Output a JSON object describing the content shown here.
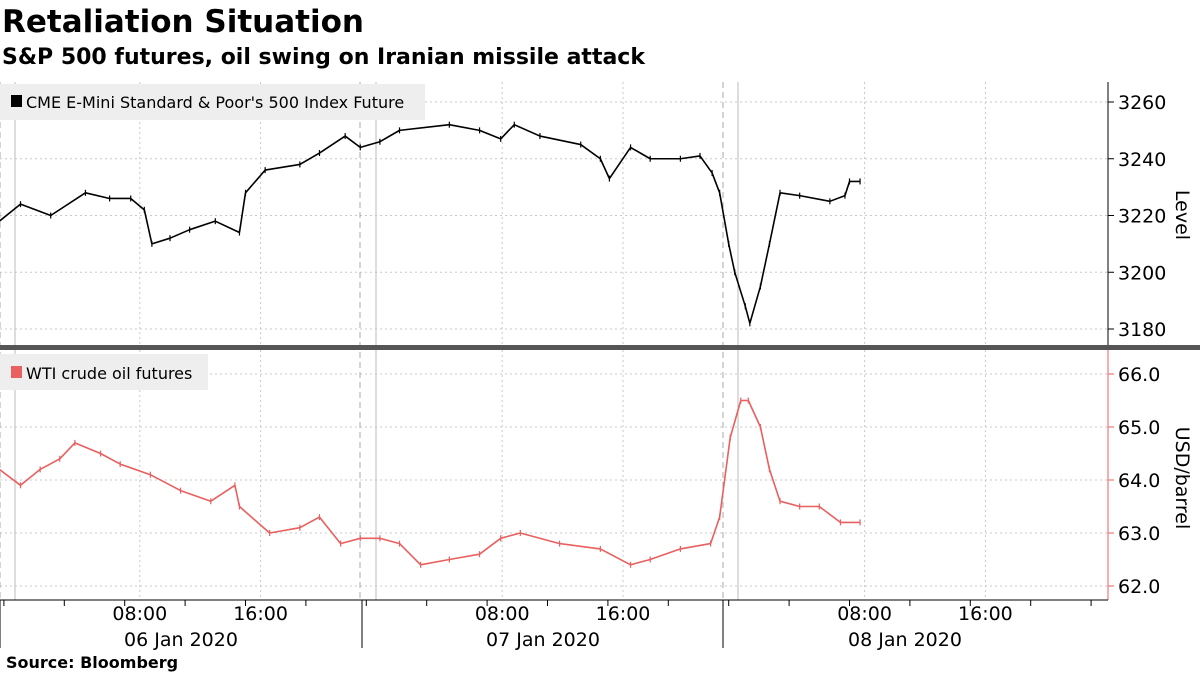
{
  "title": "Retaliation Situation",
  "subtitle": "S&P 500 futures, oil swing on Iranian missile attack",
  "source": "Source: Bloomberg",
  "colors": {
    "spx": "#000000",
    "oil": "#e8605f",
    "grid": "#c8c8c8",
    "divider": "#555555",
    "legend_bg": "#eeeeee"
  },
  "chart_data": [
    {
      "type": "line",
      "name": "CME E-Mini Standard & Poor's 500 Index Future",
      "ylabel": "Level",
      "ylim": [
        3175,
        3270
      ],
      "yticks": [
        "3260",
        "3240",
        "3220",
        "3200",
        "3180"
      ],
      "ytick_values": [
        3260,
        3240,
        3220,
        3200,
        3180
      ],
      "x_unit": "hours since 06 Jan 2020 00:00",
      "x": [
        -1.3,
        0.1,
        2.1,
        4.4,
        6.0,
        7.4,
        8.3,
        8.8,
        10.0,
        11.3,
        13.0,
        14.6,
        15.0,
        16.3,
        18.6,
        19.9,
        21.6,
        22.6,
        23.9,
        25.2,
        28.5,
        30.5,
        31.9,
        32.8,
        34.5,
        37.2,
        38.5,
        39.1,
        40.5,
        41.8,
        43.8,
        45.1,
        45.9,
        46.4,
        47.0,
        47.4,
        48.1,
        48.4,
        49.1,
        49.7,
        50.4,
        51.7,
        53.7,
        54.7,
        55.0,
        55.7
      ],
      "values": [
        3218,
        3224,
        3220,
        3228,
        3226,
        3226,
        3222,
        3210,
        3212,
        3215,
        3218,
        3214,
        3228,
        3236,
        3238,
        3242,
        3248,
        3244,
        3246,
        3250,
        3252,
        3250,
        3247,
        3252,
        3248,
        3245,
        3240,
        3233,
        3244,
        3240,
        3240,
        3241,
        3235,
        3228,
        3210,
        3200,
        3188,
        3182,
        3195,
        3210,
        3228,
        3227,
        3225,
        3227,
        3232,
        3232
      ]
    },
    {
      "type": "line",
      "name": "WTI crude oil futures",
      "ylabel": "USD/barrel",
      "ylim": [
        61.8,
        66.5
      ],
      "yticks": [
        "66.0",
        "65.0",
        "64.0",
        "63.0",
        "62.0"
      ],
      "ytick_values": [
        66,
        65,
        64,
        63,
        62
      ],
      "x_unit": "hours since 06 Jan 2020 00:00",
      "x": [
        -1.3,
        0.1,
        1.4,
        2.7,
        3.7,
        5.4,
        6.7,
        8.7,
        10.7,
        12.7,
        14.3,
        14.6,
        16.6,
        18.6,
        19.9,
        21.3,
        22.6,
        23.9,
        25.2,
        26.6,
        28.5,
        30.5,
        31.9,
        33.2,
        35.8,
        38.5,
        40.5,
        41.8,
        43.8,
        45.8,
        46.4,
        47.1,
        47.8,
        48.3,
        49.1,
        49.7,
        50.4,
        51.7,
        53.0,
        54.4,
        55.7
      ],
      "values": [
        64.2,
        63.9,
        64.2,
        64.4,
        64.7,
        64.5,
        64.3,
        64.1,
        63.8,
        63.6,
        63.9,
        63.5,
        63.0,
        63.1,
        63.3,
        62.8,
        62.9,
        62.9,
        62.8,
        62.4,
        62.5,
        62.6,
        62.9,
        63.0,
        62.8,
        62.7,
        62.4,
        62.5,
        62.7,
        62.8,
        63.3,
        64.8,
        65.5,
        65.5,
        65.0,
        64.2,
        63.6,
        63.5,
        63.5,
        63.2,
        63.2
      ]
    }
  ],
  "x_axis": {
    "time_labels": [
      "08:00",
      "16:00",
      "08:00",
      "16:00",
      "08:00",
      "16:00"
    ],
    "time_hours": [
      8,
      16,
      32,
      40,
      56,
      64
    ],
    "date_labels": [
      "06 Jan 2020",
      "07 Jan 2020",
      "08 Jan 2020"
    ]
  }
}
